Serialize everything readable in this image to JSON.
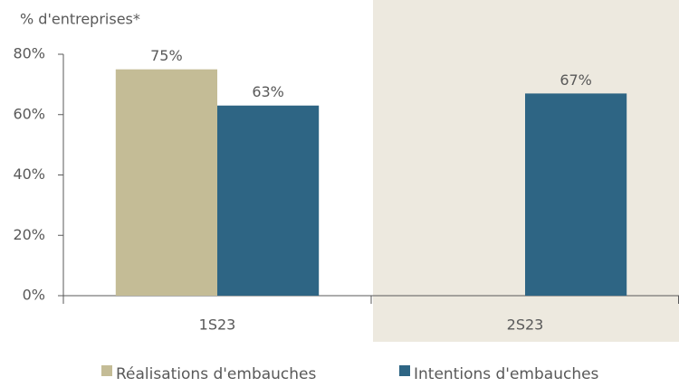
{
  "chart_data": {
    "type": "bar",
    "y_label": "% d'entreprises*",
    "categories": [
      "1S23",
      "2S23"
    ],
    "series": [
      {
        "name": "Réalisations d'embauches",
        "color": "#c4bc96",
        "values": [
          75,
          null
        ],
        "value_labels": [
          "75%",
          null
        ]
      },
      {
        "name": "Intentions d'embauches",
        "color": "#2e6584",
        "values": [
          63,
          67
        ],
        "value_labels": [
          "63%",
          "67%"
        ]
      }
    ],
    "ylim": [
      0,
      80
    ],
    "yticks": [
      {
        "value": 0,
        "label": "0%"
      },
      {
        "value": 20,
        "label": "20%"
      },
      {
        "value": 40,
        "label": "40%"
      },
      {
        "value": 60,
        "label": "60%"
      },
      {
        "value": 80,
        "label": "80%"
      }
    ],
    "grid": false,
    "legend": "bottom"
  }
}
